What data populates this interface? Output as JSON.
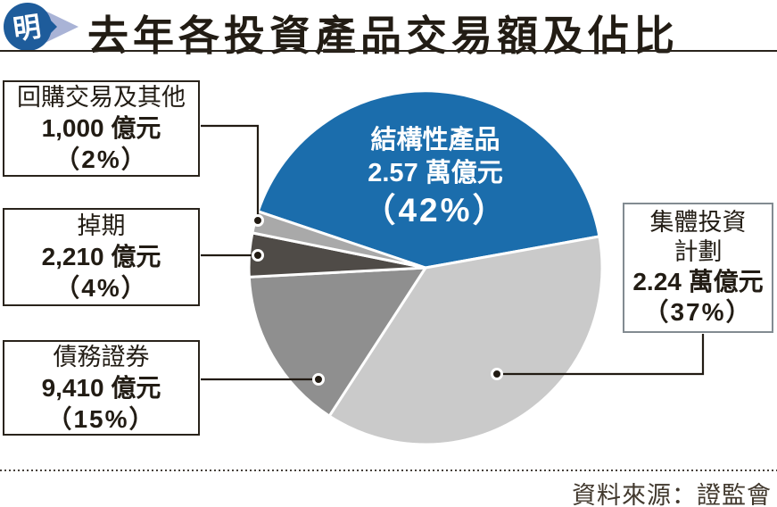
{
  "header": {
    "title": "去年各投資產品交易額及佔比",
    "logo_char": "明"
  },
  "footer": {
    "source": "資料來源：證監會"
  },
  "chart_data": {
    "type": "pie",
    "title": "去年各投資產品交易額及佔比",
    "source": "資料來源：證監會",
    "unit_note": "values shown in 億元 / 萬億元 (HKD)",
    "start_angle_deg": 198.6,
    "clockwise": true,
    "slices": [
      {
        "label": "結構性產品",
        "value_text": "2.57 萬億元",
        "percent": 42,
        "percent_text": "（42%）",
        "color": "#1b6dac"
      },
      {
        "label": "集體投資計劃",
        "label_line1": "集體投資",
        "label_line2": "計劃",
        "value_text": "2.24 萬億元",
        "percent": 37,
        "percent_text": "（37%）",
        "color": "#cacaca"
      },
      {
        "label": "債務證券",
        "value_text": "9,410 億元",
        "percent": 15,
        "percent_text": "（15%）",
        "color": "#8f8f8f"
      },
      {
        "label": "掉期",
        "value_text": "2,210 億元",
        "percent": 4,
        "percent_text": "（4%）",
        "color": "#4f4b47"
      },
      {
        "label": "回購交易及其他",
        "value_text": "1,000 億元",
        "percent": 2,
        "percent_text": "（2%）",
        "color": "#a9a9a9"
      }
    ]
  },
  "logo_colors": {
    "bubble": "#1e5c9b",
    "chevron": "#a9b3d6"
  }
}
